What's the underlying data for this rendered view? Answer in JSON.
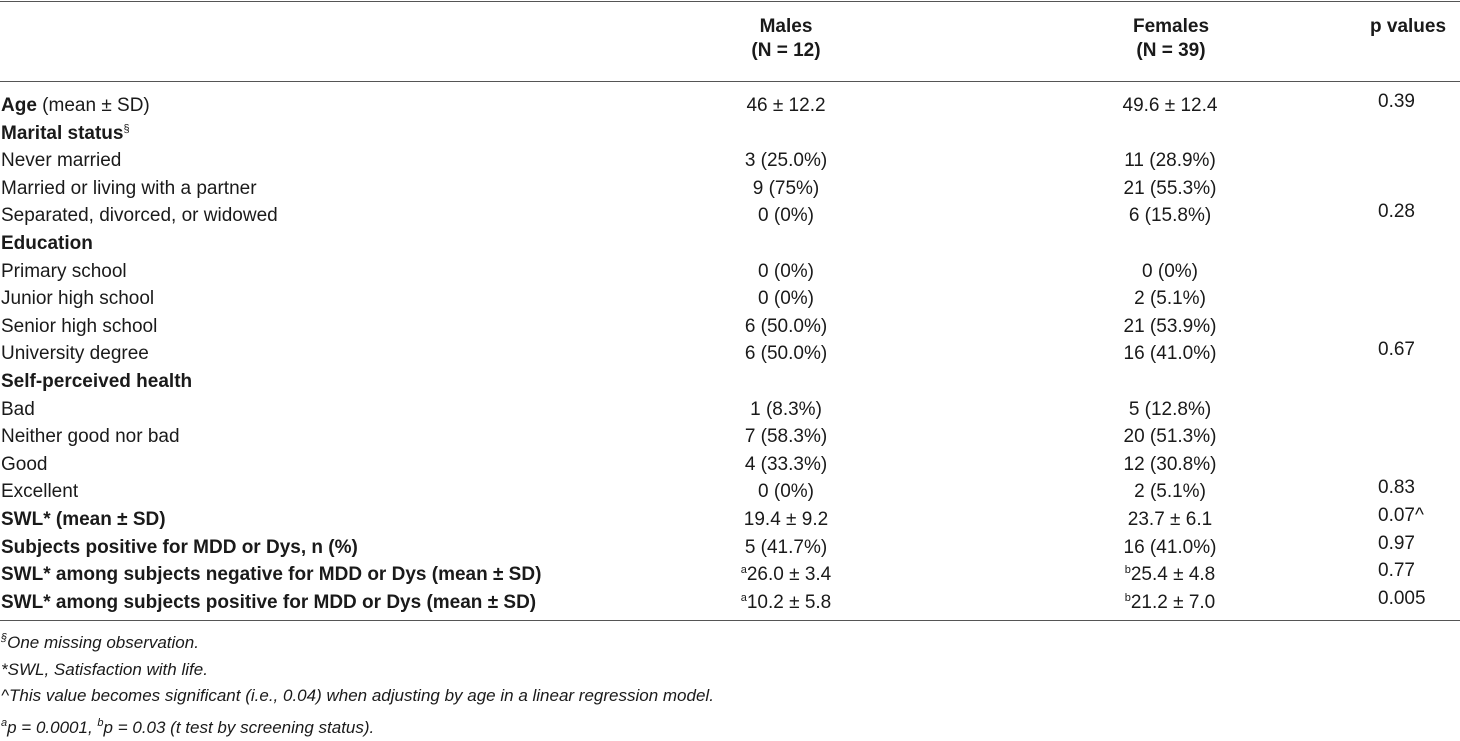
{
  "header": {
    "males_label": "Males",
    "males_n": "(N = 12)",
    "females_label": "Females",
    "females_n": "(N = 39)",
    "p_label": "p values"
  },
  "rows": [
    {
      "label_bold": "Age",
      "label_rest": " (mean ± SD)",
      "sup": "",
      "male_sup": "",
      "male": "46 ± 12.2",
      "female_sup": "",
      "female": "49.6 ± 12.4",
      "p": "0.39"
    },
    {
      "label_bold": "Marital status",
      "label_rest": "",
      "sup": "§",
      "male_sup": "",
      "male": "",
      "female_sup": "",
      "female": "",
      "p": ""
    },
    {
      "label_bold": "",
      "label_rest": "Never married",
      "sup": "",
      "male_sup": "",
      "male": "3 (25.0%)",
      "female_sup": "",
      "female": "11 (28.9%)",
      "p": ""
    },
    {
      "label_bold": "",
      "label_rest": "Married or living with a partner",
      "sup": "",
      "male_sup": "",
      "male": "9 (75%)",
      "female_sup": "",
      "female": "21 (55.3%)",
      "p": ""
    },
    {
      "label_bold": "",
      "label_rest": "Separated, divorced, or widowed",
      "sup": "",
      "male_sup": "",
      "male": "0 (0%)",
      "female_sup": "",
      "female": "6 (15.8%)",
      "p": "0.28"
    },
    {
      "label_bold": "Education",
      "label_rest": "",
      "sup": "",
      "male_sup": "",
      "male": "",
      "female_sup": "",
      "female": "",
      "p": ""
    },
    {
      "label_bold": "",
      "label_rest": "Primary school",
      "sup": "",
      "male_sup": "",
      "male": "0 (0%)",
      "female_sup": "",
      "female": "0 (0%)",
      "p": ""
    },
    {
      "label_bold": "",
      "label_rest": "Junior high school",
      "sup": "",
      "male_sup": "",
      "male": "0 (0%)",
      "female_sup": "",
      "female": "2 (5.1%)",
      "p": ""
    },
    {
      "label_bold": "",
      "label_rest": "Senior high school",
      "sup": "",
      "male_sup": "",
      "male": "6 (50.0%)",
      "female_sup": "",
      "female": "21 (53.9%)",
      "p": ""
    },
    {
      "label_bold": "",
      "label_rest": "University degree",
      "sup": "",
      "male_sup": "",
      "male": "6 (50.0%)",
      "female_sup": "",
      "female": "16 (41.0%)",
      "p": "0.67"
    },
    {
      "label_bold": "Self-perceived health",
      "label_rest": "",
      "sup": "",
      "male_sup": "",
      "male": "",
      "female_sup": "",
      "female": "",
      "p": ""
    },
    {
      "label_bold": "",
      "label_rest": "Bad",
      "sup": "",
      "male_sup": "",
      "male": "1 (8.3%)",
      "female_sup": "",
      "female": "5 (12.8%)",
      "p": ""
    },
    {
      "label_bold": "",
      "label_rest": "Neither good nor bad",
      "sup": "",
      "male_sup": "",
      "male": "7 (58.3%)",
      "female_sup": "",
      "female": "20 (51.3%)",
      "p": ""
    },
    {
      "label_bold": "",
      "label_rest": "Good",
      "sup": "",
      "male_sup": "",
      "male": "4 (33.3%)",
      "female_sup": "",
      "female": "12 (30.8%)",
      "p": ""
    },
    {
      "label_bold": "",
      "label_rest": "Excellent",
      "sup": "",
      "male_sup": "",
      "male": "0 (0%)",
      "female_sup": "",
      "female": "2 (5.1%)",
      "p": "0.83"
    },
    {
      "label_bold": "SWL* (mean ± SD)",
      "label_rest": "",
      "sup": "",
      "male_sup": "",
      "male": "19.4 ± 9.2",
      "female_sup": "",
      "female": "23.7 ± 6.1",
      "p": "0.07^"
    },
    {
      "label_bold": "Subjects positive for MDD or Dys, n (%)",
      "label_rest": "",
      "sup": "",
      "male_sup": "",
      "male": "5 (41.7%)",
      "female_sup": "",
      "female": "16 (41.0%)",
      "p": "0.97"
    },
    {
      "label_bold": "SWL* among subjects negative for MDD or Dys (mean ± SD)",
      "label_rest": "",
      "sup": "",
      "male_sup": "a",
      "male": "26.0 ± 3.4",
      "female_sup": "b",
      "female": "25.4 ± 4.8",
      "p": "0.77"
    },
    {
      "label_bold": "SWL* among subjects positive for MDD or Dys (mean ± SD)",
      "label_rest": "",
      "sup": "",
      "male_sup": "a",
      "male": "10.2 ± 5.8",
      "female_sup": "b",
      "female": "21.2 ± 7.0",
      "p": "0.005"
    }
  ],
  "notes": [
    {
      "sup": "§",
      "text": "One missing observation."
    },
    {
      "sup": "",
      "text": "*SWL, Satisfaction with life."
    },
    {
      "sup": "",
      "text": "^This value becomes significant (i.e., 0.04) when adjusting by age in a linear regression model."
    },
    {
      "sup": "a",
      "text": "p = 0.0001, "
    },
    {
      "sup": "b",
      "text": "p = 0.03 (t test by screening status)."
    }
  ]
}
